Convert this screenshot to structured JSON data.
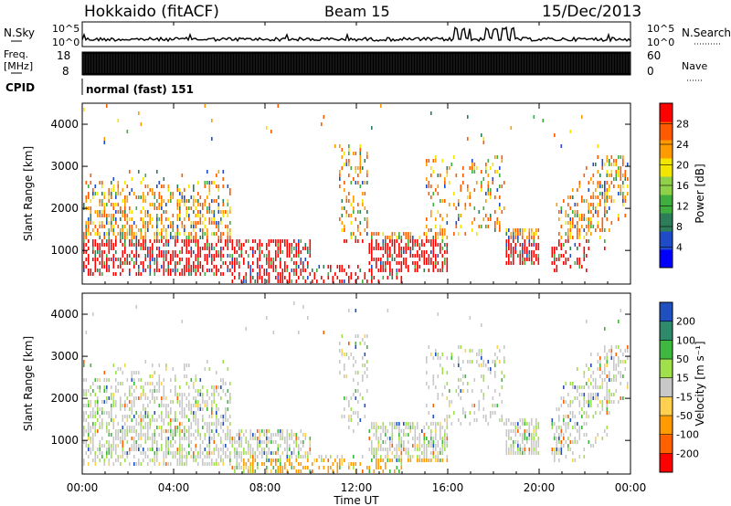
{
  "header": {
    "station": "Hokkaido (fitACF)",
    "beam": "Beam 15",
    "date": "15/Dec/2013"
  },
  "panels": {
    "nsky_label": "N.Sky",
    "nsearch_label": "N.Search",
    "nsky_ticks": [
      "10^5",
      "10^0"
    ],
    "nsearch_ticks": [
      "10^5",
      "10^0"
    ],
    "freq_label": "Freq.",
    "freq_unit": "[MHz]",
    "freq_ticks": [
      "18",
      "8"
    ],
    "nave_label": "Nave",
    "nave_ticks": [
      "60",
      "0"
    ],
    "cpid_label": "CPID",
    "cpid_text": "normal (fast) 151"
  },
  "colors": {
    "power": [
      "#0000ff",
      "#1f4bc8",
      "#2e7d5a",
      "#3fae3f",
      "#8fd24a",
      "#f2e600",
      "#ff9b00",
      "#ff5a00",
      "#ff0000"
    ],
    "velocity": [
      "#ff0000",
      "#ff6000",
      "#ff9a00",
      "#ffd050",
      "#c8c8c8",
      "#a0e04a",
      "#3fb83f",
      "#2e8a6a",
      "#2050c0"
    ]
  },
  "chart_data": [
    {
      "type": "heatmap",
      "name": "power",
      "ylabel": "Slant Range [km]",
      "yticks": [
        "1000",
        "2000",
        "3000",
        "4000"
      ],
      "ylim": [
        200,
        4500
      ],
      "colorbar_label": "Power [dB]",
      "colorbar_ticks": [
        "28",
        "24",
        "20",
        "16",
        "12",
        "8",
        "4"
      ],
      "colorbar_range": [
        0,
        32
      ]
    },
    {
      "type": "heatmap",
      "name": "velocity",
      "ylabel": "Slant Range [km]",
      "yticks": [
        "1000",
        "2000",
        "3000",
        "4000"
      ],
      "ylim": [
        200,
        4500
      ],
      "colorbar_label": "Velocity [m s⁻¹]",
      "colorbar_ticks": [
        "200",
        "100",
        "50",
        "15",
        "-15",
        "-50",
        "-100",
        "-200"
      ],
      "colorbar_range": [
        -250,
        250
      ]
    }
  ],
  "xaxis": {
    "label": "Time UT",
    "ticks": [
      "00:00",
      "04:00",
      "08:00",
      "12:00",
      "16:00",
      "20:00",
      "00:00"
    ],
    "xlim_hours": [
      0,
      24
    ]
  }
}
